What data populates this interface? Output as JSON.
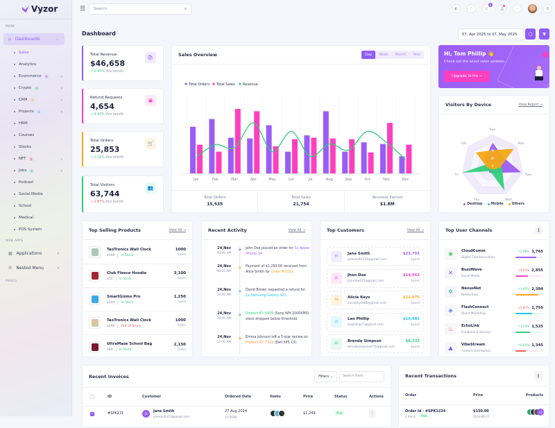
{
  "brand": {
    "name": "Vyzor"
  },
  "sidebar": {
    "sections": [
      "MAIN",
      "WEB APPS",
      "PAGES"
    ],
    "dashboards_label": "Dashboards",
    "items": [
      {
        "label": "Sales",
        "active": true
      },
      {
        "label": "Analytics"
      },
      {
        "label": "Ecommerce",
        "badge": "9",
        "badge_color": "#8f5cf7",
        "chevron": true
      },
      {
        "label": "Crypto",
        "badge": "6",
        "badge_color": "#2fcf7a",
        "chevron": true
      },
      {
        "label": "CRM",
        "badge": "5",
        "badge_color": "#f6a818",
        "chevron": true
      },
      {
        "label": "Projects",
        "badge": "4",
        "badge_color": "#20c4f0",
        "chevron": true
      },
      {
        "label": "HRM"
      },
      {
        "label": "Courses"
      },
      {
        "label": "Stocks"
      },
      {
        "label": "NFT",
        "badge": "8",
        "badge_color": "#f25c54",
        "chevron": true
      },
      {
        "label": "Jobs",
        "badge": "6",
        "badge_color": "#2fcf7a",
        "chevron": true
      },
      {
        "label": "Podcast"
      },
      {
        "label": "Social Media"
      },
      {
        "label": "School"
      },
      {
        "label": "Medical"
      },
      {
        "label": "POS System"
      }
    ],
    "web_apps": [
      {
        "label": "Applications",
        "icon": "grid-icon"
      },
      {
        "label": "Nested Menu",
        "icon": "layers-icon"
      }
    ]
  },
  "header": {
    "search_placeholder": "Search",
    "cart_count": "5",
    "icons": [
      "palette-icon",
      "moon-icon",
      "cart-icon",
      "bell-icon",
      "fullscreen-icon",
      "avatar",
      "gear-icon"
    ]
  },
  "page": {
    "title": "Dashboard",
    "date_range": "07, Apr 2025 to 07, May 2025"
  },
  "stats": [
    {
      "label": "Total Revenue",
      "value": "$46,658",
      "change": "0.45%",
      "trend": "up",
      "suffix": "this month",
      "color": "#8f5cf7",
      "icon": "bag-icon"
    },
    {
      "label": "Refund Requests",
      "value": "4,654",
      "change": "4.43%",
      "trend": "up",
      "suffix": "this month",
      "color": "#f53ec6",
      "icon": "refund-icon"
    },
    {
      "label": "Total Orders",
      "value": "25,853",
      "change": "1.25%",
      "trend": "up",
      "suffix": "this month",
      "color": "#f6a818",
      "icon": "cart-icon"
    },
    {
      "label": "Total Visitors",
      "value": "63,744",
      "change": "2.87%",
      "trend": "down",
      "suffix": "this month",
      "color": "#2fcf7a",
      "icon": "users-icon"
    }
  ],
  "sales_overview": {
    "title": "Sales Overview",
    "tabs": [
      "Day",
      "Week",
      "Month",
      "Year"
    ],
    "active_tab": "Day",
    "summary": [
      {
        "label": "Total Orders",
        "value": "15,535"
      },
      {
        "label": "Total Sales",
        "value": "21,754"
      },
      {
        "label": "Revenue Earned",
        "value": "$1.8M"
      }
    ]
  },
  "chart_data": [
    {
      "type": "bar",
      "title": "Sales Overview",
      "categories": [
        "Jan",
        "Feb",
        "Mar",
        "Apr",
        "May",
        "Jun",
        "Jul",
        "Aug",
        "Sep",
        "Oct",
        "Nov",
        "Dec"
      ],
      "series": [
        {
          "name": "Total Orders",
          "type": "bar",
          "color": "#9b5cf6",
          "values": [
            60,
            70,
            46,
            45,
            62,
            28,
            49,
            80,
            28,
            40,
            38,
            22
          ]
        },
        {
          "name": "Total Sales",
          "type": "bar",
          "color": "#ff3fbf",
          "values": [
            37,
            28,
            83,
            80,
            35,
            44,
            46,
            45,
            44,
            27,
            65,
            37
          ]
        },
        {
          "name": "Revenue",
          "type": "line",
          "color": "#2fcf7a",
          "values": [
            21,
            37,
            33,
            65,
            28,
            54,
            22,
            38,
            30,
            54,
            40,
            18
          ]
        }
      ],
      "ylim": [
        0,
        100
      ],
      "grid": "vertical dashed",
      "legend": "top-left"
    },
    {
      "type": "radar",
      "title": "Visitors By Device",
      "categories": [
        "Sun",
        "Mon",
        "Tues",
        "Wed",
        "Thu",
        "Fri",
        "Sat"
      ],
      "ticks": [
        "0",
        "20",
        "40",
        "60"
      ],
      "rmax": 80,
      "series": [
        {
          "name": "Desktop",
          "color": "#9b5cf6",
          "values": [
            60,
            35,
            75,
            20,
            20,
            10,
            25
          ]
        },
        {
          "name": "Mobile",
          "color": "#2fcf7a",
          "values": [
            10,
            20,
            25,
            70,
            15,
            80,
            10
          ]
        },
        {
          "name": "Others",
          "color": "#f6a818",
          "values": [
            40,
            70,
            20,
            10,
            10,
            15,
            55
          ]
        }
      ],
      "legend": "bottom"
    }
  ],
  "promo": {
    "greeting": "Hi, Tom Phillip",
    "emoji": "👋",
    "text": "Check out the latest sales updates.",
    "button": "Upgrade To Pro →"
  },
  "visitors": {
    "title": "Visitors By Device",
    "link": "View Report →"
  },
  "top_products": {
    "title": "Top Selling Products",
    "link": "View All →",
    "sales_label": "Sales",
    "items": [
      {
        "name": "TaoTronics Wall Clock",
        "price": "$699",
        "status": "In Stock",
        "sales": "1000",
        "img": "#a8c9b8"
      },
      {
        "name": "Club Fleece Hoodie",
        "price": "$55",
        "status": "In Stock",
        "sales": "3,100",
        "img": "#a3262d"
      },
      {
        "name": "SmartGizmo Pro",
        "price": "$199",
        "status": "In Stock",
        "sales": "1,250",
        "img": "#3fa9e8"
      },
      {
        "name": "TaoTronics Wall Clock",
        "price": "$699",
        "status": "Out Of Stock",
        "sales": "1000",
        "img": "#d9c7a3"
      },
      {
        "name": "UltraMaze School Bag",
        "price": "$89",
        "status": "In Stock",
        "sales": "2,150",
        "img": "#7a1530"
      }
    ]
  },
  "activity": {
    "title": "Recent Activity",
    "link": "View All →",
    "items": [
      {
        "date": "24,Nov",
        "time": "08:45 AM",
        "color": "#9b5cf6",
        "parts": [
          "John Doe placed an order for ",
          "5x Apple iPhone 14",
          ""
        ]
      },
      {
        "date": "24,Nov",
        "time": "09:15 AM",
        "color": "#f6a818",
        "parts": [
          "Payment of $1,250.00 received from Alice Smith for ",
          "Order #1020",
          ". "
        ]
      },
      {
        "date": "24,Nov",
        "time": "10:00 AM",
        "color": "#20c4f0",
        "parts": [
          "David Brown requested a refund for ",
          "1x Samsung Galaxy S22",
          "."
        ]
      },
      {
        "date": "24,Nov",
        "time": "10:45 AM",
        "color": "#2fcf7a",
        "parts": [
          "",
          "Product ID: 5409",
          " (Sony WH-1000XM5) stock dropped below threshold."
        ]
      },
      {
        "date": "24,Nov",
        "time": "11:30 AM",
        "color": "#ff8a3d",
        "parts": [
          "Emma Johnson left a 5-star review on ",
          "Product ID: 7312",
          " (Dell XPS 13)."
        ]
      }
    ]
  },
  "customers": {
    "title": "Top Customers",
    "link": "View All →",
    "spent_label": "Spent",
    "items": [
      {
        "initials": "JS",
        "name": "Jane Smith",
        "email": "janesmith215@gmail.com",
        "amount": "$23,755",
        "color": "#9b5cf6"
      },
      {
        "initials": "JD",
        "name": "Jhon Doe",
        "email": "jhondoe431@gmail.com",
        "amount": "$14,563",
        "color": "#f53ec6"
      },
      {
        "initials": "AK",
        "name": "Alicia Keys",
        "email": "aliciakeys986@gmail.com",
        "amount": "$12,075",
        "color": "#f6a818"
      },
      {
        "initials": "LP",
        "name": "Leo Phillip",
        "email": "leophillip77@gmail.com",
        "amount": "$10,485",
        "color": "#20c4f0"
      },
      {
        "initials": "BS",
        "name": "Brenda Simpson",
        "email": "brendasimpson075@gmail.com",
        "amount": "$8,533",
        "color": "#2fcf7a"
      }
    ]
  },
  "channels": {
    "title": "Top User Channels",
    "items": [
      {
        "name": "CloudComm",
        "category": "Digital Communication",
        "change": "2.98%",
        "trend": "up",
        "value": "3,765",
        "progress": 75,
        "color": "#9b5cf6",
        "icon_color": "#2fae4a"
      },
      {
        "name": "BuzzWave",
        "category": "Social Media",
        "change": "6.45%",
        "trend": "down",
        "value": "2,855",
        "progress": 45,
        "color": "#f53ec6",
        "icon_color": "#7b3ff2"
      },
      {
        "name": "NexusNet",
        "category": "Networking",
        "change": "1.95%",
        "trend": "up",
        "value": "2,384",
        "progress": 82,
        "color": "#f6a818",
        "icon_color": "#20b9a8"
      },
      {
        "name": "FlashConnect",
        "category": "Direct Marketing",
        "change": "5.91%",
        "trend": "down",
        "value": "1,755",
        "progress": 60,
        "color": "#20c4f0",
        "icon_color": "#3b7bf5"
      },
      {
        "name": "EchoLink",
        "category": "Feedback & Surveys",
        "change": "3.75%",
        "trend": "up",
        "value": "1,525",
        "progress": 52,
        "color": "#2fcf7a",
        "icon_color": "#f5562b"
      },
      {
        "name": "VibeStream",
        "category": "Content Distribution",
        "change": "0.95%",
        "trend": "up",
        "value": "1,345",
        "progress": 38,
        "color": "#f25c54",
        "icon_color": "#7b5cf6"
      }
    ]
  },
  "invoices": {
    "title": "Recent Invoices",
    "filter": "Filters",
    "search_placeholder": "Search Here",
    "columns": [
      "ID",
      "Customer",
      "Ordered Date",
      "Items",
      "Price",
      "Status",
      "Actions"
    ],
    "rows": [
      {
        "id": "#SPK231",
        "initials": "JS",
        "name": "Jane Smith",
        "email": "janesmith253@gmail.com",
        "date": "27,Aug 2024",
        "time": "12:45PM",
        "price": "$1,249",
        "status": "Paid"
      }
    ]
  },
  "transactions": {
    "title": "Recent Transactions",
    "columns": [
      "Order",
      "Price",
      "Products"
    ],
    "rows": [
      {
        "order": "Order Id - #SPK1234",
        "items": "4 Items",
        "status": "Paid",
        "price": "$150.00",
        "date": "2024-08-27",
        "more": "+2"
      }
    ]
  }
}
